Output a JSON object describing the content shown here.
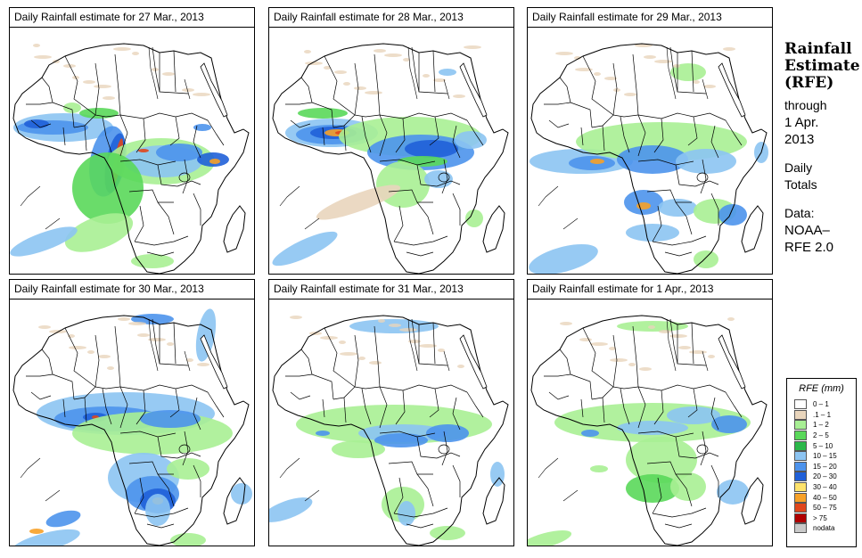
{
  "panels": [
    {
      "id": "p1",
      "caption": "Daily Rainfall estimate for  27 Mar., 2013"
    },
    {
      "id": "p2",
      "caption": "Daily Rainfall estimate for  28 Mar., 2013"
    },
    {
      "id": "p3",
      "caption": "Daily Rainfall estimate for  29 Mar., 2013"
    },
    {
      "id": "p4",
      "caption": "Daily Rainfall estimate for  30 Mar., 2013"
    },
    {
      "id": "p5",
      "caption": "Daily Rainfall estimate for  31 Mar., 2013"
    },
    {
      "id": "p6",
      "caption": "Daily Rainfall estimate for  1 Apr., 2013"
    }
  ],
  "sidebar": {
    "title_line1": "Rainfall",
    "title_line2": "Estimate",
    "title_line3": "(RFE)",
    "through": "through",
    "date_line1": "1 Apr.",
    "date_line2": "2013",
    "daily_line1": "Daily",
    "daily_line2": "Totals",
    "data_line1": "Data:",
    "data_line2": "NOAA–",
    "data_line3": "RFE 2.0"
  },
  "legend": {
    "title": "RFE (mm)",
    "items": [
      {
        "label": "0 – 1",
        "color": "#ffffff"
      },
      {
        "label": ".1 – 1",
        "color": "#e9d5bc"
      },
      {
        "label": "1 – 2",
        "color": "#a8ef94"
      },
      {
        "label": "2 – 5",
        "color": "#5ad85a"
      },
      {
        "label": "5 – 10",
        "color": "#2bb84a"
      },
      {
        "label": "10 – 15",
        "color": "#8cc4f2"
      },
      {
        "label": "15 – 20",
        "color": "#4d93ec"
      },
      {
        "label": "20 – 30",
        "color": "#2060d8"
      },
      {
        "label": "30 – 40",
        "color": "#ffe36b"
      },
      {
        "label": "40 – 50",
        "color": "#f7a128"
      },
      {
        "label": "50 – 75",
        "color": "#e0461c"
      },
      {
        "label": "> 75",
        "color": "#b00000"
      },
      {
        "label": "nodata",
        "color": "#c9c9c9"
      }
    ]
  },
  "colors": {
    "sea": "#ffffff",
    "border": "#000000"
  }
}
